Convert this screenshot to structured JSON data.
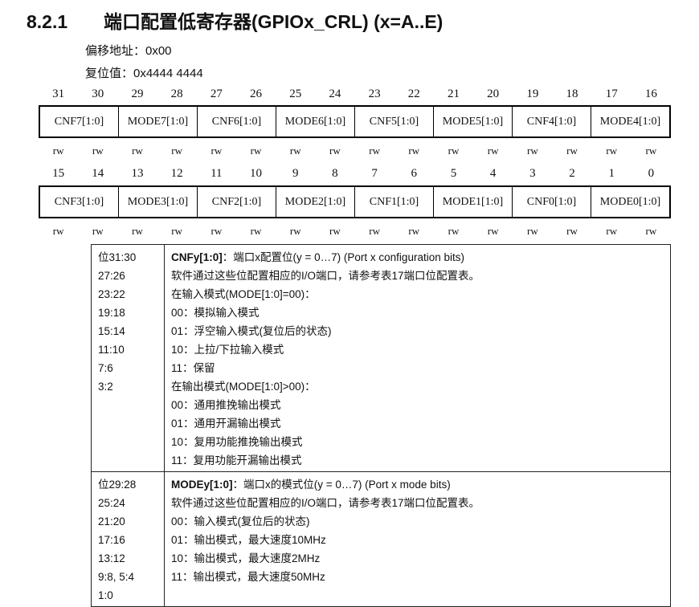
{
  "title": {
    "number": "8.2.1",
    "text": "端口配置低寄存器(GPIOx_CRL) (x=A..E)"
  },
  "offset": "偏移地址：0x00",
  "reset": "复位值：0x4444 4444",
  "upper": {
    "bits": [
      "31",
      "30",
      "29",
      "28",
      "27",
      "26",
      "25",
      "24",
      "23",
      "22",
      "21",
      "20",
      "19",
      "18",
      "17",
      "16"
    ],
    "fields": [
      "CNF7[1:0]",
      "MODE7[1:0]",
      "CNF6[1:0]",
      "MODE6[1:0]",
      "CNF5[1:0]",
      "MODE5[1:0]",
      "CNF4[1:0]",
      "MODE4[1:0]"
    ],
    "access": [
      "rw",
      "rw",
      "rw",
      "rw",
      "rw",
      "rw",
      "rw",
      "rw",
      "rw",
      "rw",
      "rw",
      "rw",
      "rw",
      "rw",
      "rw",
      "rw"
    ]
  },
  "lower": {
    "bits": [
      "15",
      "14",
      "13",
      "12",
      "11",
      "10",
      "9",
      "8",
      "7",
      "6",
      "5",
      "4",
      "3",
      "2",
      "1",
      "0"
    ],
    "fields": [
      "CNF3[1:0]",
      "MODE3[1:0]",
      "CNF2[1:0]",
      "MODE2[1:0]",
      "CNF1[1:0]",
      "MODE1[1:0]",
      "CNF0[1:0]",
      "MODE0[1:0]"
    ],
    "access": [
      "rw",
      "rw",
      "rw",
      "rw",
      "rw",
      "rw",
      "rw",
      "rw",
      "rw",
      "rw",
      "rw",
      "rw",
      "rw",
      "rw",
      "rw",
      "rw"
    ]
  },
  "desc": [
    {
      "bits": [
        "位31:30",
        "27:26",
        "23:22",
        "19:18",
        "15:14",
        "11:10",
        "7:6",
        "3:2"
      ],
      "name": "CNFy[1:0]",
      "heading": "：端口x配置位(y = 0…7) (Port x configuration bits)",
      "lines": [
        "软件通过这些位配置相应的I/O端口，请参考表17端口位配置表。",
        "在输入模式(MODE[1:0]=00)：",
        "00：模拟输入模式",
        "01：浮空输入模式(复位后的状态)",
        "10：上拉/下拉输入模式",
        "11：保留",
        "在输出模式(MODE[1:0]>00)：",
        "00：通用推挽输出模式",
        "01：通用开漏输出模式",
        "10：复用功能推挽输出模式",
        "11：复用功能开漏输出模式"
      ]
    },
    {
      "bits": [
        "位29:28",
        "25:24",
        "21:20",
        "17:16",
        "13:12",
        "9:8, 5:4",
        "1:0"
      ],
      "name": "MODEy[1:0]",
      "heading": "：端口x的模式位(y = 0…7) (Port x mode bits)",
      "lines": [
        "软件通过这些位配置相应的I/O端口，请参考表17端口位配置表。",
        "00：输入模式(复位后的状态)",
        "01：输出模式，最大速度10MHz",
        "10：输出模式，最大速度2MHz",
        "11：输出模式，最大速度50MHz"
      ]
    }
  ]
}
